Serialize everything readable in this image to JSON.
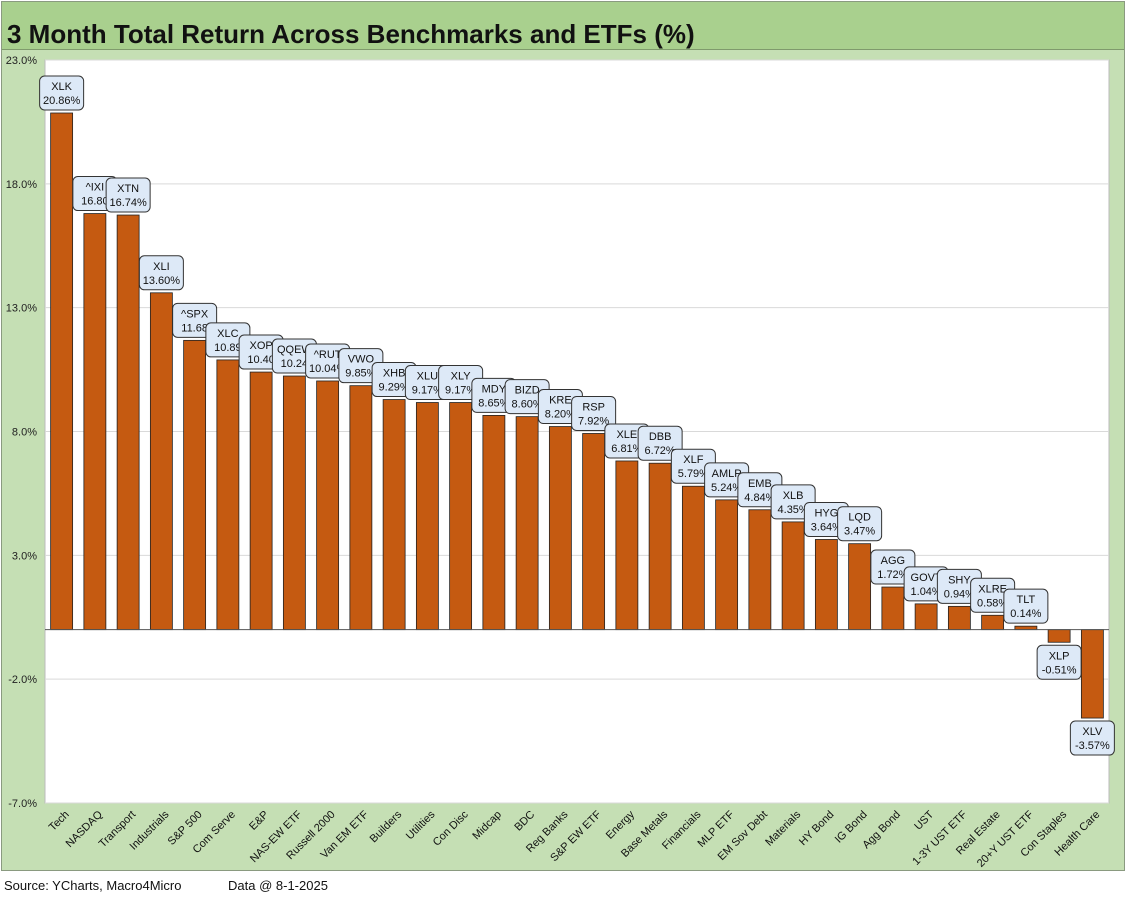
{
  "title": "3 Month Total Return Across Benchmarks and ETFs (%)",
  "footer": {
    "source": "Source: YCharts, Macro4Micro",
    "date": "Data @ 8-1-2025"
  },
  "colors": {
    "bar": "#c55a11",
    "plot_bg": "#ffffff",
    "outer_bg": "#c5dfb4",
    "title_bg": "#a9d08e",
    "grid": "#d9d9d9",
    "label_bg": "#dde9f7"
  },
  "chart_data": {
    "type": "bar",
    "title": "3 Month Total Return Across Benchmarks and ETFs (%)",
    "xlabel": "",
    "ylabel": "",
    "ylim": [
      -7.0,
      23.0
    ],
    "yticks": [
      23.0,
      18.0,
      13.0,
      8.0,
      3.0,
      -2.0,
      -7.0
    ],
    "ytick_labels": [
      "23.0%",
      "18.0%",
      "13.0%",
      "8.0%",
      "3.0%",
      "-2.0%",
      "-7.0%"
    ],
    "grid": true,
    "categories": [
      "Tech",
      "NASDAQ",
      "Transport",
      "Industrials",
      "S&P 500",
      "Com Serve",
      "E&P",
      "NAS-EW ETF",
      "Russell 2000",
      "Van EM ETF",
      "Builders",
      "Utilities",
      "Con Disc",
      "Midcap",
      "BDC",
      "Reg Banks",
      "S&P EW ETF",
      "Energy",
      "Base Metals",
      "Financials",
      "MLP ETF",
      "EM Sov Debt",
      "Materials",
      "HY Bond",
      "IG Bond",
      "Agg Bond",
      "UST",
      "1-3Y UST ETF",
      "Real Estate",
      "20+Y UST ETF",
      "Con Staples",
      "Health Care"
    ],
    "tickers": [
      "XLK",
      "^IXIC",
      "XTN",
      "XLI",
      "^SPX",
      "XLC",
      "XOP",
      "QQEW",
      "^RUT",
      "VWO",
      "XHB",
      "XLU",
      "XLY",
      "MDY",
      "BIZD",
      "KRE",
      "RSP",
      "XLE",
      "DBB",
      "XLF",
      "AMLP",
      "EMB",
      "XLB",
      "HYG",
      "LQD",
      "AGG",
      "GOVT",
      "SHY",
      "XLRE",
      "TLT",
      "XLP",
      "XLV"
    ],
    "values": [
      20.86,
      16.8,
      16.74,
      13.6,
      11.68,
      10.89,
      10.4,
      10.24,
      10.04,
      9.85,
      9.29,
      9.17,
      9.17,
      8.65,
      8.6,
      8.2,
      7.92,
      6.81,
      6.72,
      5.79,
      5.24,
      4.84,
      4.35,
      3.64,
      3.47,
      1.72,
      1.04,
      0.94,
      0.58,
      0.14,
      -0.51,
      -3.57
    ],
    "value_labels": [
      "20.86%",
      "16.80",
      "16.74%",
      "13.60%",
      "11.68",
      "10.89",
      "10.40",
      "10.24",
      "10.04%",
      "9.85%",
      "9.29%",
      "9.17%",
      "9.17%",
      "8.65%",
      "8.60%",
      "8.20%",
      "7.92%",
      "6.81%",
      "6.72%",
      "5.79%",
      "5.24%",
      "4.84%",
      "4.35%",
      "3.64%",
      "3.47%",
      "1.72%",
      "1.04%",
      "0.94%",
      "0.58%",
      "0.14%",
      "-0.51%",
      "-3.57%"
    ],
    "ticker_labels": [
      "XLK",
      "^IXI",
      "XTN",
      "XLI",
      "^SPX",
      "XLC",
      "XOP",
      "QQEW",
      "^RUT",
      "VWO",
      "XHB",
      "XLU",
      "XLY",
      "MDY",
      "BIZD",
      "KRE",
      "RSP",
      "XLE",
      "DBB",
      "XLF",
      "AMLP",
      "EMB",
      "XLB",
      "HYG",
      "LQD",
      "AGG",
      "GOVT",
      "SHY",
      "XLRE",
      "TLT",
      "XLP",
      "XLV"
    ]
  }
}
